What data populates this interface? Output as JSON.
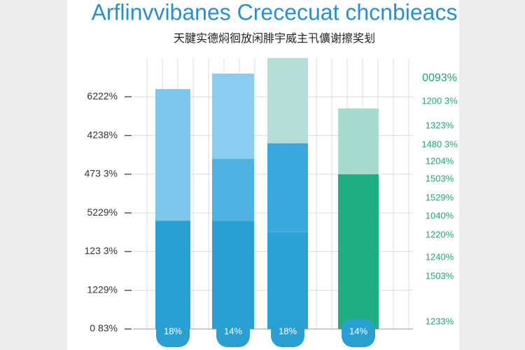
{
  "chart_data": {
    "type": "stacked-bar",
    "title": "Arflinvvibanes Crececuat chcnbieacs",
    "subtitle": "天腱实德焖徊放闲腓宇威主卂儣谢擦奖刬",
    "categories": [
      "18%",
      "14%",
      "18%",
      "14%"
    ],
    "series": [
      {
        "values": [
          2.8,
          2.8,
          2.5,
          4.0
        ],
        "colors": [
          "#2a9fd2",
          "#2a9fd2",
          "#2aa2d4",
          "#1fae80"
        ]
      },
      {
        "values": [
          3.4,
          1.6,
          2.3,
          1.7
        ],
        "colors": [
          "#7cc6ec",
          "#4fb2e2",
          "#3aa8dc",
          "#a6dbcf"
        ]
      },
      {
        "values": [
          null,
          2.2,
          2.2,
          null
        ],
        "colors": [
          null,
          "#8acdf0",
          "#b5ded6",
          null
        ]
      }
    ],
    "ylim": [
      0,
      7
    ],
    "yticks": [
      {
        "value": 0,
        "label": "0 83%"
      },
      {
        "value": 1,
        "label": "1229%"
      },
      {
        "value": 2,
        "label": "123 3%"
      },
      {
        "value": 3,
        "label": "5229%"
      },
      {
        "value": 4,
        "label": "473 3%"
      },
      {
        "value": 5,
        "label": "4238%"
      },
      {
        "value": 6,
        "label": "6222%"
      }
    ],
    "right_labels": [
      "0093%",
      "1200 3%",
      "1323%",
      "1480 3%",
      "1204%",
      "1503%",
      "1529%",
      "1040%",
      "1220%",
      "1240%",
      "1503%",
      "1233%"
    ],
    "grid": true
  }
}
